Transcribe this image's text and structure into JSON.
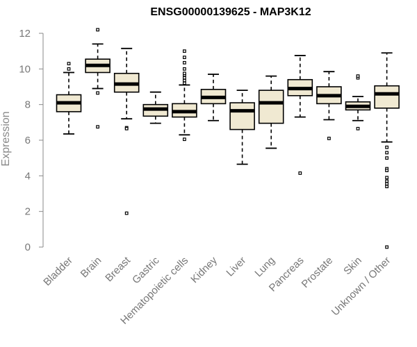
{
  "chart_data": {
    "type": "boxplot",
    "title": "ENSG00000139625 - MAP3K12",
    "xlabel": "",
    "ylabel": "Expression",
    "ylim": [
      0,
      12
    ],
    "yticks": [
      0,
      2,
      4,
      6,
      8,
      10,
      12
    ],
    "box_fill": "#f0e9d2",
    "categories": [
      "Bladder",
      "Brain",
      "Breast",
      "Gastric",
      "Hematopoietic cells",
      "Kidney",
      "Liver",
      "Lung",
      "Pancreas",
      "Prostate",
      "Skin",
      "Unknown / Other"
    ],
    "boxes": [
      {
        "low": 6.35,
        "q1": 7.6,
        "median": 8.1,
        "q3": 8.55,
        "high": 9.8,
        "outliers": [
          10.0,
          10.3
        ]
      },
      {
        "low": 8.9,
        "q1": 9.8,
        "median": 10.2,
        "q3": 10.55,
        "high": 11.4,
        "outliers": [
          12.2,
          8.65,
          6.75
        ]
      },
      {
        "low": 7.2,
        "q1": 8.7,
        "median": 9.15,
        "q3": 9.75,
        "high": 11.15,
        "outliers": [
          6.7,
          6.65,
          1.9
        ]
      },
      {
        "low": 6.95,
        "q1": 7.35,
        "median": 7.75,
        "q3": 8.0,
        "high": 8.7,
        "outliers": []
      },
      {
        "low": 6.3,
        "q1": 7.3,
        "median": 7.6,
        "q3": 8.05,
        "high": 9.1,
        "outliers": [
          9.2,
          9.35,
          9.5,
          9.65,
          9.75,
          10.0,
          10.35,
          10.65,
          11.0,
          6.05
        ]
      },
      {
        "low": 7.1,
        "q1": 8.05,
        "median": 8.4,
        "q3": 8.85,
        "high": 9.7,
        "outliers": []
      },
      {
        "low": 4.65,
        "q1": 6.6,
        "median": 7.65,
        "q3": 8.1,
        "high": 8.8,
        "outliers": []
      },
      {
        "low": 5.55,
        "q1": 6.95,
        "median": 8.1,
        "q3": 8.8,
        "high": 9.6,
        "outliers": []
      },
      {
        "low": 7.3,
        "q1": 8.5,
        "median": 8.9,
        "q3": 9.4,
        "high": 10.75,
        "outliers": [
          4.15
        ]
      },
      {
        "low": 7.15,
        "q1": 8.05,
        "median": 8.5,
        "q3": 9.0,
        "high": 9.85,
        "outliers": [
          6.1
        ]
      },
      {
        "low": 7.1,
        "q1": 7.7,
        "median": 7.9,
        "q3": 8.15,
        "high": 8.45,
        "outliers": [
          9.5,
          9.6,
          6.65
        ]
      },
      {
        "low": 5.9,
        "q1": 7.8,
        "median": 8.6,
        "q3": 9.05,
        "high": 10.9,
        "outliers": [
          5.6,
          5.3,
          5.0,
          4.4,
          4.3,
          3.9,
          3.7,
          3.55,
          3.4,
          0.0
        ]
      }
    ]
  }
}
